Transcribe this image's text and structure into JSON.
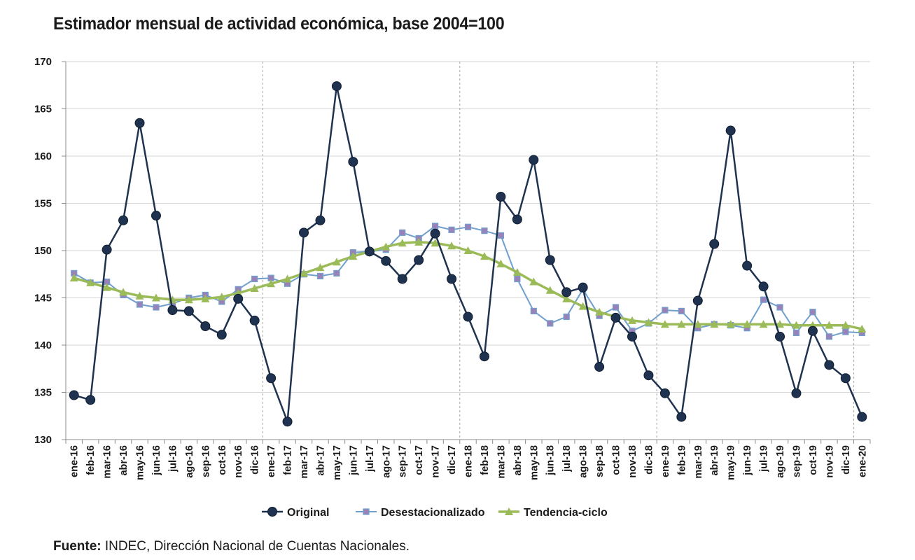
{
  "title": "Estimador mensual de actividad económica, base 2004=100",
  "source": {
    "label": "Fuente:",
    "text": "INDEC, Dirección Nacional de Cuentas Nacionales."
  },
  "chart_data": {
    "type": "line",
    "title": "Estimador mensual de actividad económica, base 2004=100",
    "xlabel": "",
    "ylabel": "",
    "ylim": [
      130,
      170
    ],
    "yticks": [
      130,
      135,
      140,
      145,
      150,
      155,
      160,
      165,
      170
    ],
    "grid": "horizontal gridlines; dashed vertical separators at each year boundary",
    "legend": "bottom-center",
    "categories": [
      "ene-16",
      "feb-16",
      "mar-16",
      "abr-16",
      "may-16",
      "jun-16",
      "jul-16",
      "ago-16",
      "sep-16",
      "oct-16",
      "nov-16",
      "dic-16",
      "ene-17",
      "feb-17",
      "mar-17",
      "abr-17",
      "may-17",
      "jun-17",
      "jul-17",
      "ago-17",
      "sep-17",
      "oct-17",
      "nov-17",
      "dic-17",
      "ene-18",
      "feb-18",
      "mar-18",
      "abr-18",
      "may-18",
      "jun-18",
      "jul-18",
      "ago-18",
      "sep-18",
      "oct-18",
      "nov-18",
      "dic-18",
      "ene-19",
      "feb-19",
      "mar-19",
      "abr-19",
      "may-19",
      "jun-19",
      "jul-19",
      "ago-19",
      "sep-19",
      "oct-19",
      "nov-19",
      "dic-19",
      "ene-20"
    ],
    "series": [
      {
        "name": "Original",
        "color": "#1f3350",
        "marker": "circle",
        "values": [
          134.7,
          134.2,
          150.1,
          153.2,
          163.5,
          153.7,
          143.7,
          143.6,
          142.0,
          141.1,
          144.9,
          142.6,
          136.5,
          131.9,
          151.9,
          153.2,
          167.4,
          159.4,
          149.9,
          148.9,
          147.0,
          149.0,
          151.8,
          147.0,
          143.0,
          138.8,
          155.7,
          153.3,
          159.6,
          149.0,
          145.6,
          146.1,
          137.7,
          142.9,
          140.9,
          136.8,
          134.9,
          132.4,
          144.7,
          150.7,
          162.7,
          148.4,
          146.2,
          140.9,
          134.9,
          141.5,
          137.9,
          136.5,
          132.4
        ]
      },
      {
        "name": "Desestacionalizado",
        "color": "#6f9fcd",
        "marker": "square",
        "marker_color": "#9a82b8",
        "values": [
          147.6,
          146.6,
          146.7,
          145.3,
          144.3,
          144.0,
          144.4,
          145.0,
          145.3,
          144.6,
          145.9,
          147.0,
          147.1,
          146.5,
          147.5,
          147.3,
          147.6,
          149.8,
          149.9,
          150.1,
          151.9,
          151.3,
          152.6,
          152.2,
          152.5,
          152.1,
          151.6,
          147.0,
          143.6,
          142.3,
          143.0,
          145.9,
          143.1,
          144.0,
          141.5,
          142.3,
          143.7,
          143.6,
          141.8,
          142.2,
          142.1,
          141.8,
          144.8,
          144.0,
          141.3,
          143.5,
          140.9,
          141.4,
          141.3
        ]
      },
      {
        "name": "Tendencia-ciclo",
        "color": "#9bbb59",
        "marker": "triangle",
        "values": [
          147.1,
          146.6,
          146.1,
          145.6,
          145.2,
          145.0,
          144.8,
          144.8,
          144.9,
          145.1,
          145.5,
          146.0,
          146.5,
          147.0,
          147.6,
          148.2,
          148.8,
          149.4,
          149.9,
          150.4,
          150.8,
          150.9,
          150.8,
          150.5,
          150.0,
          149.4,
          148.6,
          147.7,
          146.7,
          145.8,
          144.9,
          144.1,
          143.5,
          143.0,
          142.6,
          142.4,
          142.2,
          142.2,
          142.2,
          142.2,
          142.2,
          142.2,
          142.2,
          142.2,
          142.1,
          142.1,
          142.1,
          142.1,
          141.7
        ]
      }
    ]
  }
}
